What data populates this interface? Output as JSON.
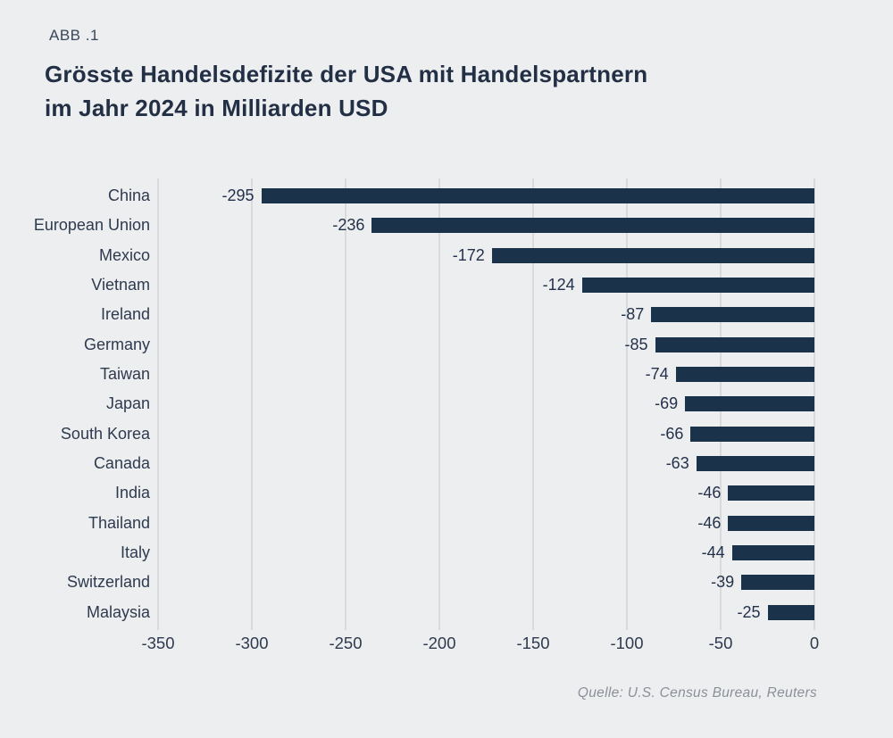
{
  "header": {
    "figure_label": "ABB .1",
    "title_lines": [
      "Grösste Handelsdefizite der USA mit Handelspartnern",
      "im Jahr 2024 in Milliarden USD"
    ]
  },
  "chart_data": {
    "type": "bar",
    "orientation": "horizontal",
    "title": "Grösste Handelsdefizite der USA mit Handelspartnern im Jahr 2024 in Milliarden USD",
    "categories": [
      "China",
      "European Union",
      "Mexico",
      "Vietnam",
      "Ireland",
      "Germany",
      "Taiwan",
      "Japan",
      "South Korea",
      "Canada",
      "India",
      "Thailand",
      "Italy",
      "Switzerland",
      "Malaysia"
    ],
    "values": [
      -295,
      -236,
      -172,
      -124,
      -87,
      -85,
      -74,
      -69,
      -66,
      -63,
      -46,
      -46,
      -44,
      -39,
      -25
    ],
    "value_labels": [
      "-295",
      "-236",
      "-172",
      "-124",
      "-87",
      "-85",
      "-74",
      "-69",
      "-66",
      "-63",
      "-46",
      "-46",
      "-44",
      "-39",
      "-25"
    ],
    "xlabel": "",
    "ylabel": "",
    "xlim": [
      -350,
      0
    ],
    "x_ticks": [
      "-350",
      "-300",
      "-250",
      "-200",
      "-150",
      "-100",
      "-50",
      "0"
    ],
    "grid": "vertical",
    "legend": "none",
    "colors": {
      "bar": "#1a324a",
      "background": "#edeef0",
      "gridline": "#d9dadc",
      "title_text": "#222f44",
      "label_text": "#2e3a4e",
      "source_text": "#8b8f97"
    }
  },
  "footer": {
    "source": "Quelle: U.S. Census Bureau, Reuters"
  }
}
